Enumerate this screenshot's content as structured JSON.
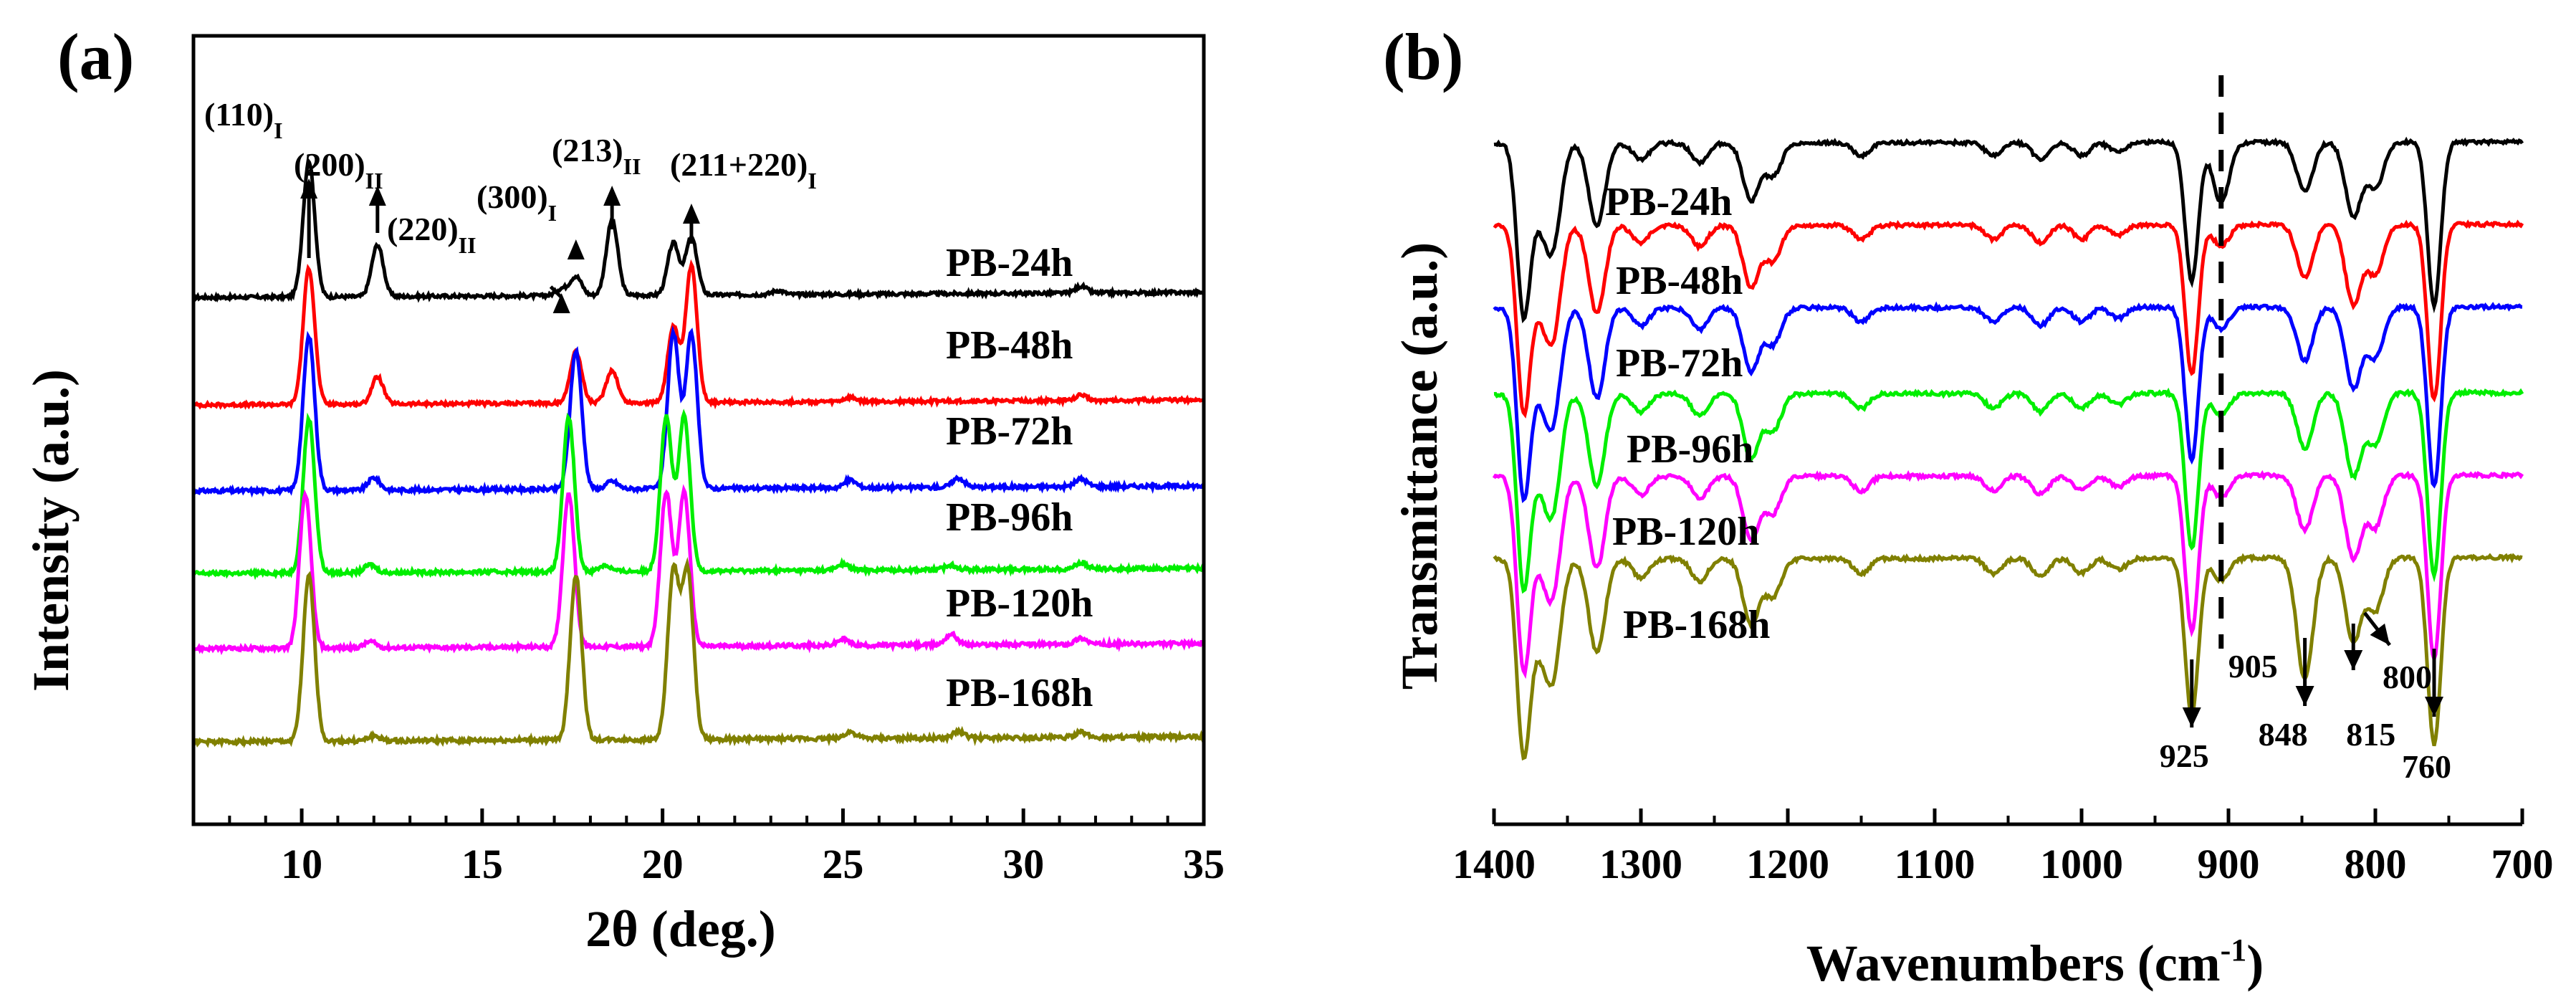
{
  "panel_a": {
    "label": "(a)",
    "xlabel": "2θ (deg.)",
    "ylabel": "Intensity (a.u.)",
    "xlim": [
      7,
      35
    ],
    "xticks": [
      10,
      15,
      20,
      25,
      30,
      35
    ],
    "series": [
      {
        "name": "PB-24h",
        "color": "#000000"
      },
      {
        "name": "PB-48h",
        "color": "#ff0000"
      },
      {
        "name": "PB-72h",
        "color": "#0000ff"
      },
      {
        "name": "PB-96h",
        "color": "#00ee00"
      },
      {
        "name": "PB-120h",
        "color": "#ff00ff"
      },
      {
        "name": "PB-168h",
        "color": "#808000"
      }
    ],
    "peak_labels": [
      {
        "main": "(110)",
        "sub": "I",
        "x": 10.2
      },
      {
        "main": "(200)",
        "sub": "II",
        "x": 12.1
      },
      {
        "main": "(220)",
        "sub": "II",
        "x": 17.2
      },
      {
        "main": "(300)",
        "sub": "I",
        "x": 17.6
      },
      {
        "main": "(213)",
        "sub": "II",
        "x": 18.6
      },
      {
        "main": "(211+220)",
        "sub": "I",
        "x": 20.8
      }
    ]
  },
  "panel_b": {
    "label": "(b)",
    "xlabel": "Wavenumbers (cm",
    "xlabel_sup": "-1",
    "xlabel_end": ")",
    "ylabel": "Transmittance (a.u.)",
    "xlim": [
      1400,
      700
    ],
    "xticks": [
      1400,
      1300,
      1200,
      1100,
      1000,
      900,
      800,
      700
    ],
    "series": [
      {
        "name": "PB-24h",
        "color": "#000000"
      },
      {
        "name": "PB-48h",
        "color": "#ff0000"
      },
      {
        "name": "PB-72h",
        "color": "#0000ff"
      },
      {
        "name": "PB-96h",
        "color": "#00ee00"
      },
      {
        "name": "PB-120h",
        "color": "#ff00ff"
      },
      {
        "name": "PB-168h",
        "color": "#808000"
      }
    ],
    "band_labels": [
      {
        "text": "925",
        "x": 925
      },
      {
        "text": "905",
        "x": 905
      },
      {
        "text": "848",
        "x": 848
      },
      {
        "text": "815",
        "x": 815
      },
      {
        "text": "800",
        "x": 800
      },
      {
        "text": "760",
        "x": 760
      }
    ],
    "dashed_marker_x": 905
  },
  "chart_data": [
    {
      "type": "line",
      "title": "",
      "xlabel": "2θ (deg.)",
      "ylabel": "Intensity (a.u.)",
      "xlim": [
        7,
        35
      ],
      "offset_traces": true,
      "peaks": [
        {
          "x": 10.2,
          "label": "(110)I"
        },
        {
          "x": 12.1,
          "label": "(200)II"
        },
        {
          "x": 17.2,
          "label": "(220)II"
        },
        {
          "x": 17.6,
          "label": "(300)I"
        },
        {
          "x": 18.6,
          "label": "(213)II"
        },
        {
          "x": 20.8,
          "label": "(211+220)I"
        }
      ],
      "series": [
        {
          "name": "PB-24h",
          "color": "#000000",
          "peaks": [
            {
              "x": 10.2,
              "h": 1.0
            },
            {
              "x": 12.1,
              "h": 0.38
            },
            {
              "x": 17.2,
              "h": 0.05
            },
            {
              "x": 17.6,
              "h": 0.14
            },
            {
              "x": 18.6,
              "h": 0.55
            },
            {
              "x": 20.3,
              "h": 0.38
            },
            {
              "x": 20.8,
              "h": 0.42
            },
            {
              "x": 23.2,
              "h": 0.03
            },
            {
              "x": 31.6,
              "h": 0.05
            }
          ]
        },
        {
          "name": "PB-48h",
          "color": "#ff0000",
          "peaks": [
            {
              "x": 10.2,
              "h": 1.0
            },
            {
              "x": 12.1,
              "h": 0.2
            },
            {
              "x": 17.6,
              "h": 0.38
            },
            {
              "x": 18.6,
              "h": 0.24
            },
            {
              "x": 20.3,
              "h": 0.55
            },
            {
              "x": 20.8,
              "h": 1.0
            },
            {
              "x": 25.2,
              "h": 0.03
            },
            {
              "x": 31.6,
              "h": 0.04
            }
          ]
        },
        {
          "name": "PB-72h",
          "color": "#0000ff",
          "peaks": [
            {
              "x": 10.2,
              "h": 1.0
            },
            {
              "x": 12.0,
              "h": 0.08
            },
            {
              "x": 17.6,
              "h": 0.9
            },
            {
              "x": 18.6,
              "h": 0.05
            },
            {
              "x": 20.3,
              "h": 1.0
            },
            {
              "x": 20.8,
              "h": 1.0
            },
            {
              "x": 25.2,
              "h": 0.05
            },
            {
              "x": 28.2,
              "h": 0.06
            },
            {
              "x": 31.6,
              "h": 0.05
            }
          ]
        },
        {
          "name": "PB-96h",
          "color": "#00ee00",
          "peaks": [
            {
              "x": 10.2,
              "h": 1.0
            },
            {
              "x": 11.9,
              "h": 0.05
            },
            {
              "x": 17.4,
              "h": 1.0
            },
            {
              "x": 18.4,
              "h": 0.04
            },
            {
              "x": 20.1,
              "h": 1.0
            },
            {
              "x": 20.6,
              "h": 1.0
            },
            {
              "x": 25.0,
              "h": 0.04
            },
            {
              "x": 28.0,
              "h": 0.03
            },
            {
              "x": 31.6,
              "h": 0.04
            }
          ]
        },
        {
          "name": "PB-120h",
          "color": "#ff00ff",
          "peaks": [
            {
              "x": 10.1,
              "h": 1.0
            },
            {
              "x": 11.9,
              "h": 0.04
            },
            {
              "x": 17.4,
              "h": 1.0
            },
            {
              "x": 20.1,
              "h": 1.0
            },
            {
              "x": 20.6,
              "h": 1.0
            },
            {
              "x": 25.0,
              "h": 0.04
            },
            {
              "x": 28.0,
              "h": 0.07
            },
            {
              "x": 31.6,
              "h": 0.04
            }
          ]
        },
        {
          "name": "PB-168h",
          "color": "#808000",
          "peaks": [
            {
              "x": 10.2,
              "h": 1.0
            },
            {
              "x": 12.0,
              "h": 0.03
            },
            {
              "x": 17.6,
              "h": 1.0
            },
            {
              "x": 20.3,
              "h": 1.0
            },
            {
              "x": 20.7,
              "h": 1.0
            },
            {
              "x": 25.2,
              "h": 0.04
            },
            {
              "x": 28.2,
              "h": 0.04
            },
            {
              "x": 31.6,
              "h": 0.03
            }
          ]
        }
      ]
    },
    {
      "type": "line",
      "title": "",
      "xlabel": "Wavenumbers (cm-1)",
      "ylabel": "Transmittance (a.u.)",
      "xlim": [
        1400,
        700
      ],
      "offset_traces": true,
      "annotations": [
        {
          "x": 925,
          "label": "925"
        },
        {
          "x": 905,
          "label": "905"
        },
        {
          "x": 848,
          "label": "848"
        },
        {
          "x": 815,
          "label": "815"
        },
        {
          "x": 800,
          "label": "800"
        },
        {
          "x": 760,
          "label": "760"
        }
      ],
      "dips": [
        {
          "x": 1380,
          "d": 1.0
        },
        {
          "x": 1370,
          "d": 0.35
        },
        {
          "x": 1360,
          "d": 0.6
        },
        {
          "x": 1330,
          "d": 0.5
        },
        {
          "x": 1300,
          "d": 0.1
        },
        {
          "x": 1260,
          "d": 0.12
        },
        {
          "x": 1225,
          "d": 0.35
        },
        {
          "x": 1210,
          "d": 0.2
        },
        {
          "x": 1150,
          "d": 0.08
        },
        {
          "x": 1060,
          "d": 0.08
        },
        {
          "x": 1028,
          "d": 0.1
        },
        {
          "x": 1000,
          "d": 0.08
        },
        {
          "x": 975,
          "d": 0.06
        },
        {
          "x": 925,
          "d": 0.85
        },
        {
          "x": 905,
          "d": 0.12
        },
        {
          "x": 848,
          "d": 0.3
        },
        {
          "x": 815,
          "d": 0.45
        },
        {
          "x": 800,
          "d": 0.28
        },
        {
          "x": 760,
          "d": 1.0
        }
      ],
      "series": [
        {
          "name": "PB-24h",
          "color": "#000000",
          "dip_scale": 0.95,
          "extra": [
            {
              "x": 905,
              "d": 0.25
            }
          ]
        },
        {
          "name": "PB-48h",
          "color": "#ff0000",
          "dip_scale": 1.0,
          "extra": []
        },
        {
          "name": "PB-72h",
          "color": "#0000ff",
          "dip_scale": 1.0,
          "extra": []
        },
        {
          "name": "PB-96h",
          "color": "#00ee00",
          "dip_scale": 1.0,
          "extra": []
        },
        {
          "name": "PB-120h",
          "color": "#ff00ff",
          "dip_scale": 1.0,
          "extra": []
        },
        {
          "name": "PB-168h",
          "color": "#808000",
          "dip_scale": 1.0,
          "extra": [
            {
              "x": 848,
              "d": 0.35
            }
          ]
        }
      ]
    }
  ]
}
